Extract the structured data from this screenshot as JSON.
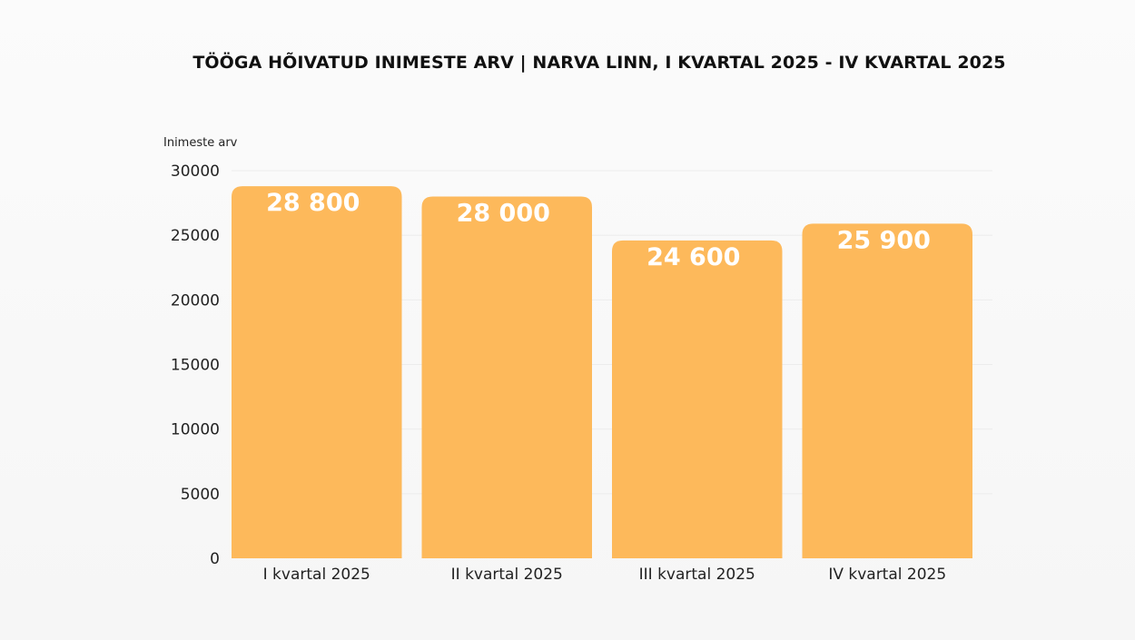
{
  "chart_data": {
    "type": "bar",
    "title": "TÖÖGA HÕIVATUD INIMESTE ARV | NARVA LINN, I KVARTAL 2025 - IV KVARTAL 2025",
    "ylabel": "Inimeste arv",
    "xlabel": "",
    "categories": [
      "I kvartal 2025",
      "II kvartal 2025",
      "III kvartal 2025",
      "IV kvartal 2025"
    ],
    "values": [
      28800,
      28000,
      24600,
      25900
    ],
    "data_labels": [
      "28 800",
      "28 000",
      "24 600",
      "25 900"
    ],
    "ylim": [
      0,
      30000
    ],
    "yticks": [
      0,
      5000,
      10000,
      15000,
      20000,
      25000,
      30000
    ],
    "ytick_labels": [
      "0",
      "5000",
      "10000",
      "15000",
      "20000",
      "25000",
      "30000"
    ],
    "grid": true,
    "legend": "none",
    "colors": {
      "bar": "#FDB95B",
      "grid": "#ececec",
      "data_label": "#ffffff"
    }
  }
}
